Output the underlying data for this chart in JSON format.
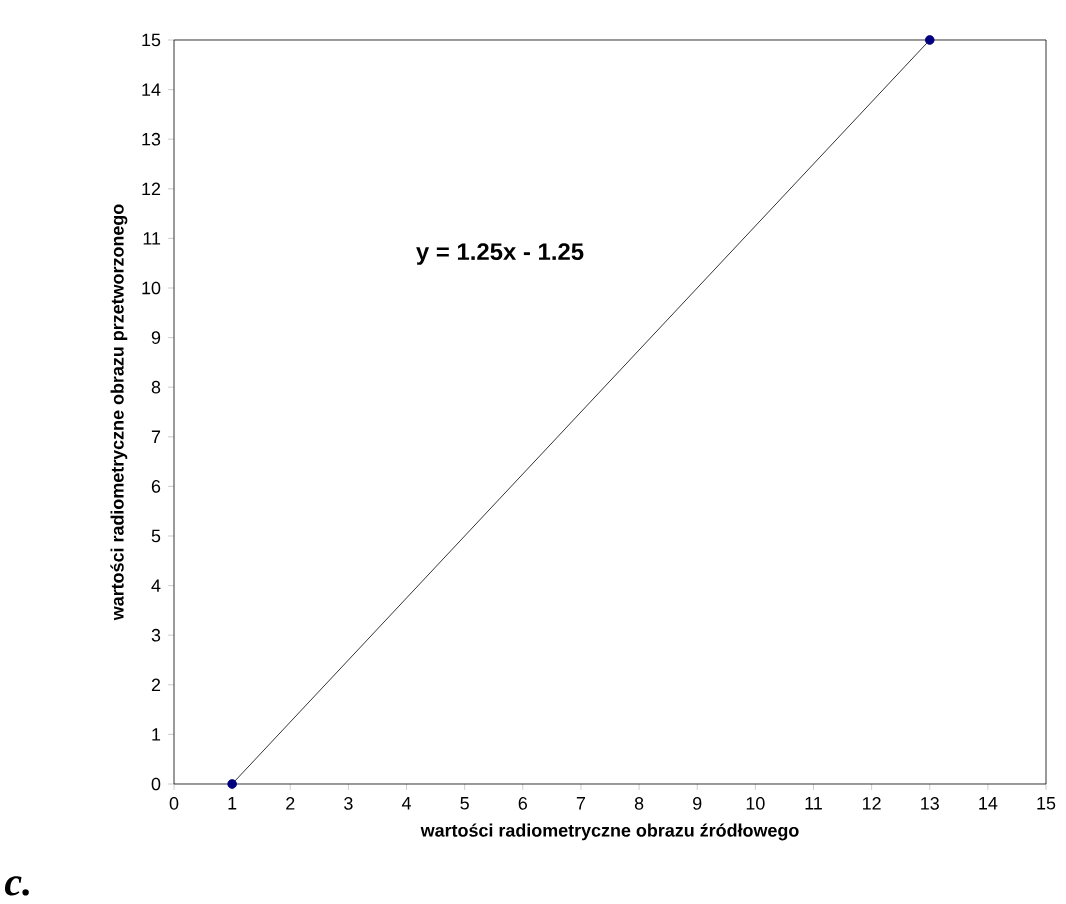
{
  "chart_data": {
    "type": "line",
    "xlabel": "wartości radiometryczne obrazu źródłowego",
    "ylabel": "wartości radiometryczne obrazu przetworzonego",
    "x": [
      1,
      13
    ],
    "series": [
      {
        "color": "#000080",
        "values": [
          0,
          15
        ]
      }
    ],
    "marker": "circle",
    "line_style": "solid",
    "grid": false,
    "xlim": [
      0,
      15
    ],
    "ylim": [
      0,
      15
    ],
    "xticks": [
      0,
      1,
      2,
      3,
      4,
      5,
      6,
      7,
      8,
      9,
      10,
      11,
      12,
      13,
      14,
      15
    ],
    "yticks": [
      0,
      1,
      2,
      3,
      4,
      5,
      6,
      7,
      8,
      9,
      10,
      11,
      12,
      13,
      14,
      15
    ],
    "annotations": [
      "y = 1.25x - 1.25",
      "c."
    ]
  }
}
